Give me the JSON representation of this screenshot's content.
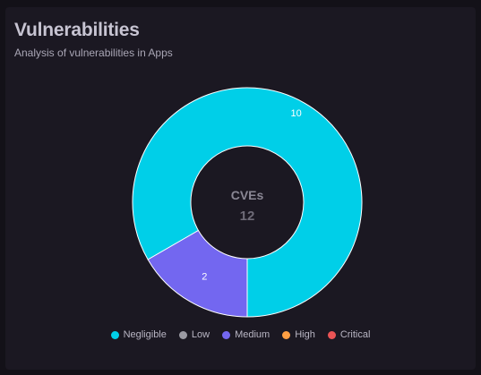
{
  "header": {
    "title": "Vulnerabilities",
    "subtitle": "Analysis of vulnerabilities in Apps"
  },
  "chart_data": {
    "type": "pie",
    "donut": true,
    "center_label": "CVEs",
    "center_value": "12",
    "categories": [
      "Negligible",
      "Low",
      "Medium",
      "High",
      "Critical"
    ],
    "values": [
      10,
      0,
      2,
      0,
      0
    ],
    "colors": [
      "#00cfe8",
      "#9b9aa3",
      "#7367f0",
      "#ff9f43",
      "#ea5455"
    ],
    "legend_position": "bottom"
  }
}
